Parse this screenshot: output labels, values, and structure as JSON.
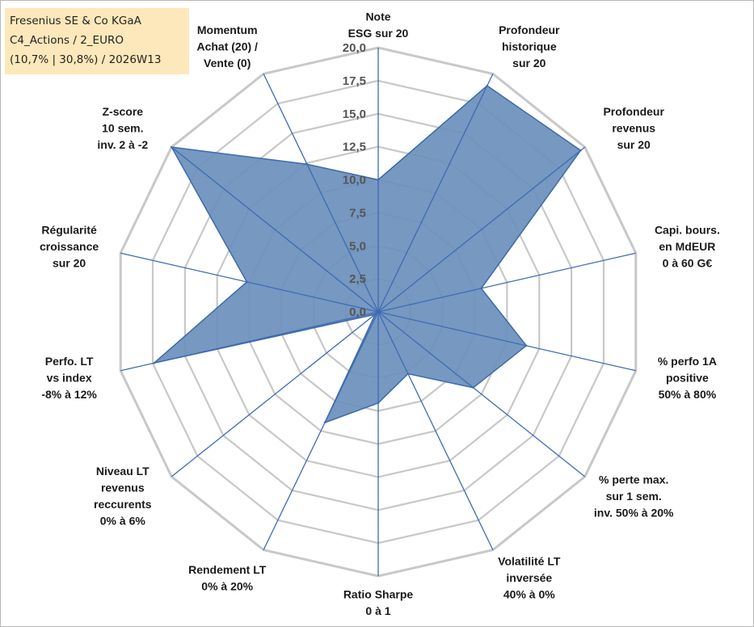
{
  "title_box": {
    "line1": "Fresenius SE & Co KGaA",
    "line2": "C4_Actions / 2_EURO",
    "line3": "(10,7% | 30,8%) / 2026W13"
  },
  "chart_data": {
    "type": "radar",
    "r_range": [
      0,
      20
    ],
    "tick_values": [
      0,
      2.5,
      5,
      7.5,
      10,
      12.5,
      15,
      17.5,
      20
    ],
    "tick_labels": [
      "0,0",
      "2,5",
      "5,0",
      "7,5",
      "10,0",
      "12,5",
      "15,0",
      "17,5",
      "20,0"
    ],
    "axes": [
      {
        "label": [
          "Note",
          "ESG sur 20"
        ],
        "value": 10.0
      },
      {
        "label": [
          "Profondeur",
          "historique",
          "sur 20"
        ],
        "value": 19.0
      },
      {
        "label": [
          "Profondeur",
          "revenus",
          "sur 20"
        ],
        "value": 19.6
      },
      {
        "label": [
          "Capi. bours.",
          "en MdEUR",
          "0 à 60 G€"
        ],
        "value": 8.0
      },
      {
        "label": [
          "% perfo 1A",
          "positive",
          "50% à 80%"
        ],
        "value": 11.5
      },
      {
        "label": [
          "% perte max.",
          "sur 1 sem.",
          "inv. 50% à 20%"
        ],
        "value": 9.2
      },
      {
        "label": [
          "Volatilité LT",
          "inversée",
          "40% à 0%"
        ],
        "value": 5.2
      },
      {
        "label": [
          "Ratio Sharpe",
          "0 à 1"
        ],
        "value": 6.9
      },
      {
        "label": [
          "Rendement LT",
          "0% à 20%"
        ],
        "value": 9.3
      },
      {
        "label": [
          "Niveau LT",
          "revenus",
          "reccurents",
          "0% à 6%"
        ],
        "value": 0.3
      },
      {
        "label": [
          "Perfo. LT",
          "vs index",
          "-8% à 12%"
        ],
        "value": 17.4
      },
      {
        "label": [
          "Régularité",
          "croissance",
          "sur 20"
        ],
        "value": 10.2
      },
      {
        "label": [
          "Z-score",
          "10 sem.",
          "inv. 2 à -2"
        ],
        "value": 20.0
      },
      {
        "label": [
          "Momentum",
          "Achat (20) /",
          "Vente (0)"
        ],
        "value": 12.4
      }
    ],
    "colors": {
      "fill": "#6a8fbc",
      "stroke": "#3d6aa8",
      "spoke": "#3d6bb3",
      "grid": "#c8c8c8"
    }
  }
}
